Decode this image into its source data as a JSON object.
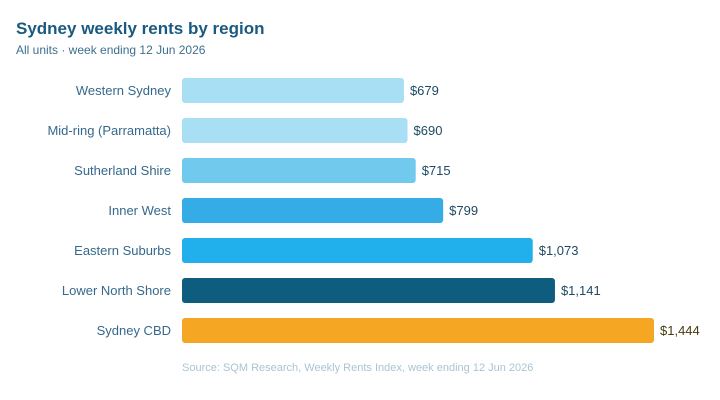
{
  "header": {
    "title": "Sydney weekly rents by region",
    "subtitle": "All units · week ending 12 Jun 2026"
  },
  "footer": {
    "source": "Source: SQM Research, Weekly Rents Index, week ending 12 Jun 2026"
  },
  "chart_data": {
    "type": "bar",
    "orientation": "horizontal",
    "title": "Sydney weekly rents by region",
    "subtitle": "All units · week ending 12 Jun 2026",
    "unit": "$ per week",
    "categories": [
      "Western Sydney",
      "Mid-ring (Parramatta)",
      "Sutherland Shire",
      "Inner West",
      "Eastern Suburbs",
      "Lower North Shore",
      "Sydney CBD"
    ],
    "values": [
      679,
      690,
      715,
      799,
      1073,
      1141,
      1444
    ],
    "value_labels": [
      "$679",
      "$690",
      "$715",
      "$799",
      "$1,073",
      "$1,141",
      "$1,444"
    ],
    "colors": [
      "#a8dff4",
      "#a8dff4",
      "#72c9ee",
      "#35ace6",
      "#22b0ec",
      "#0e5c7e",
      "#f5a623"
    ],
    "xlim": [
      0,
      1444
    ],
    "grid": false,
    "legend": "none"
  }
}
